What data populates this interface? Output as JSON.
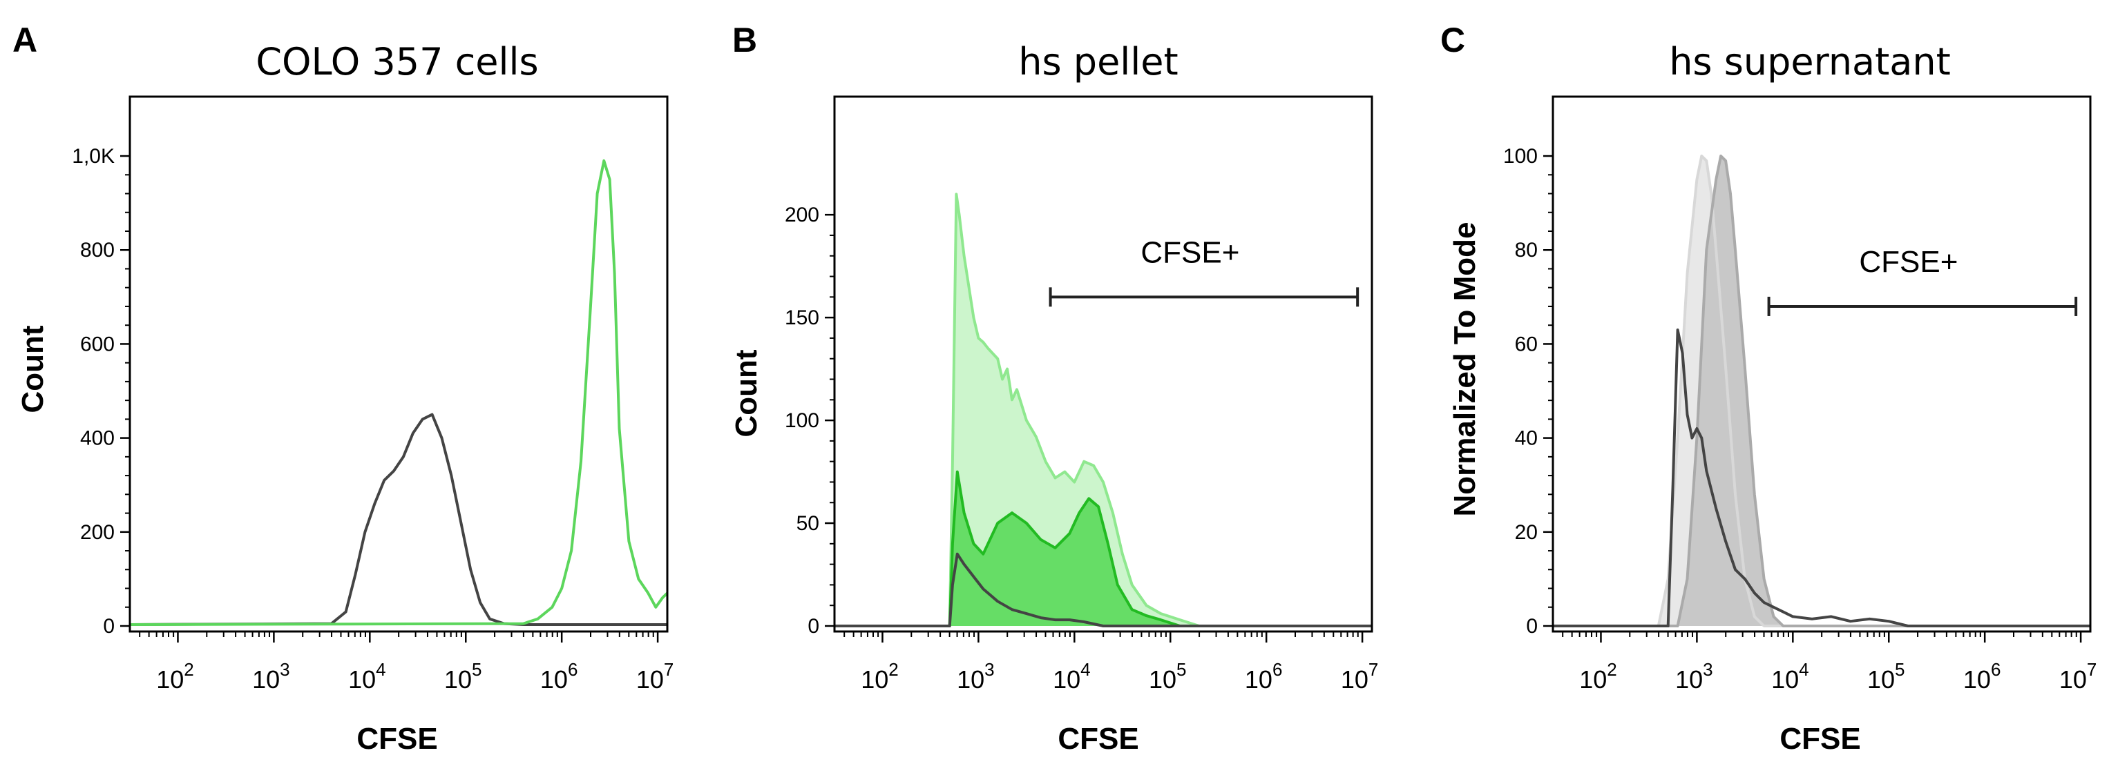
{
  "chart_data": [
    {
      "panel": "A",
      "type": "area",
      "title": "COLO 357 cells",
      "xlabel": "CFSE",
      "ylabel": "Count",
      "x_scale": "log",
      "x_ticks": [
        {
          "base": "10",
          "exp": "2"
        },
        {
          "base": "10",
          "exp": "3"
        },
        {
          "base": "10",
          "exp": "4"
        },
        {
          "base": "10",
          "exp": "5"
        },
        {
          "base": "10",
          "exp": "6"
        },
        {
          "base": "10",
          "exp": "7"
        }
      ],
      "y_ticks": [
        "0",
        "200",
        "400",
        "600",
        "800",
        "1,0K"
      ],
      "y_tick_values": [
        0,
        200,
        400,
        600,
        800,
        1000
      ],
      "xlim": [
        1.5,
        7.1
      ],
      "ylim": [
        0,
        1050
      ],
      "grid": false,
      "series": [
        {
          "color": "#444444",
          "fill": "none",
          "x": [
            1.5,
            3.6,
            3.75,
            3.85,
            3.95,
            4.05,
            4.15,
            4.25,
            4.35,
            4.45,
            4.55,
            4.65,
            4.75,
            4.85,
            4.95,
            5.05,
            5.15,
            5.25,
            5.4,
            5.6,
            7.1
          ],
          "y": [
            3,
            5,
            30,
            110,
            200,
            260,
            310,
            330,
            360,
            410,
            440,
            450,
            400,
            320,
            220,
            120,
            50,
            15,
            5,
            3,
            3
          ]
        },
        {
          "color": "#5cd65c",
          "fill": "none",
          "x": [
            1.5,
            5.6,
            5.75,
            5.9,
            6.0,
            6.1,
            6.2,
            6.3,
            6.37,
            6.44,
            6.5,
            6.55,
            6.6,
            6.7,
            6.8,
            6.9,
            6.98,
            7.05,
            7.1
          ],
          "y": [
            3,
            5,
            15,
            40,
            80,
            160,
            350,
            680,
            920,
            990,
            950,
            750,
            420,
            180,
            100,
            70,
            40,
            60,
            70
          ]
        }
      ]
    },
    {
      "panel": "B",
      "type": "area",
      "title": "hs pellet",
      "xlabel": "CFSE",
      "ylabel": "Count",
      "x_scale": "log",
      "x_ticks": [
        {
          "base": "10",
          "exp": "2"
        },
        {
          "base": "10",
          "exp": "3"
        },
        {
          "base": "10",
          "exp": "4"
        },
        {
          "base": "10",
          "exp": "5"
        },
        {
          "base": "10",
          "exp": "6"
        },
        {
          "base": "10",
          "exp": "7"
        }
      ],
      "y_ticks": [
        "0",
        "50",
        "100",
        "150",
        "200"
      ],
      "y_tick_values": [
        0,
        50,
        100,
        150,
        200
      ],
      "xlim": [
        1.5,
        7.1
      ],
      "ylim": [
        0,
        240
      ],
      "grid": false,
      "gate": {
        "label": "CFSE+",
        "from": 3.75,
        "to": 6.95,
        "y": 160
      },
      "series": [
        {
          "color": "#8fe88f",
          "fill": "#ccf5cc",
          "x": [
            1.5,
            2.7,
            2.73,
            2.77,
            2.8,
            2.85,
            2.9,
            2.95,
            3.0,
            3.05,
            3.1,
            3.2,
            3.25,
            3.3,
            3.35,
            3.4,
            3.5,
            3.6,
            3.7,
            3.8,
            3.9,
            4.0,
            4.1,
            4.2,
            4.3,
            4.4,
            4.5,
            4.6,
            4.75,
            4.9,
            5.1,
            5.3,
            7.1
          ],
          "y": [
            0,
            0,
            80,
            210,
            200,
            180,
            165,
            150,
            140,
            138,
            135,
            130,
            120,
            125,
            110,
            115,
            100,
            92,
            80,
            72,
            75,
            70,
            80,
            78,
            70,
            55,
            35,
            20,
            10,
            6,
            3,
            0,
            0
          ]
        },
        {
          "color": "#22bb22",
          "fill": "#66dd66",
          "x": [
            1.5,
            2.7,
            2.73,
            2.78,
            2.85,
            2.95,
            3.05,
            3.2,
            3.35,
            3.5,
            3.65,
            3.8,
            3.95,
            4.05,
            4.15,
            4.25,
            4.35,
            4.45,
            4.6,
            4.75,
            4.9,
            5.1,
            7.1
          ],
          "y": [
            0,
            0,
            40,
            75,
            55,
            40,
            35,
            50,
            55,
            50,
            42,
            38,
            45,
            55,
            62,
            58,
            40,
            20,
            8,
            5,
            3,
            0,
            0
          ]
        },
        {
          "color": "#444444",
          "fill": "none",
          "x": [
            1.5,
            2.7,
            2.73,
            2.78,
            2.85,
            2.95,
            3.05,
            3.2,
            3.35,
            3.5,
            3.65,
            3.8,
            3.95,
            4.1,
            4.3,
            7.1
          ],
          "y": [
            0,
            0,
            20,
            35,
            30,
            24,
            18,
            12,
            8,
            6,
            4,
            3,
            3,
            2,
            0,
            0
          ]
        }
      ]
    },
    {
      "panel": "C",
      "type": "area",
      "title": "hs supernatant",
      "xlabel": "CFSE",
      "ylabel": "Normalized To Mode",
      "x_scale": "log",
      "x_ticks": [
        {
          "base": "10",
          "exp": "2"
        },
        {
          "base": "10",
          "exp": "3"
        },
        {
          "base": "10",
          "exp": "4"
        },
        {
          "base": "10",
          "exp": "5"
        },
        {
          "base": "10",
          "exp": "6"
        },
        {
          "base": "10",
          "exp": "7"
        }
      ],
      "y_ticks": [
        "0",
        "20",
        "40",
        "60",
        "80",
        "100"
      ],
      "y_tick_values": [
        0,
        20,
        40,
        60,
        80,
        100
      ],
      "xlim": [
        1.5,
        7.1
      ],
      "ylim": [
        0,
        105
      ],
      "grid": false,
      "gate": {
        "label": "CFSE+",
        "from": 3.75,
        "to": 6.95,
        "y": 68
      },
      "series": [
        {
          "color": "#d8d8d8",
          "fill": "#e8e8e8",
          "x": [
            1.5,
            2.6,
            2.7,
            2.8,
            2.9,
            3.0,
            3.05,
            3.1,
            3.15,
            3.2,
            3.3,
            3.4,
            3.5,
            3.6,
            3.7,
            7.1
          ],
          "y": [
            0,
            0,
            10,
            40,
            75,
            95,
            100,
            99,
            92,
            80,
            55,
            28,
            10,
            2,
            0,
            0
          ]
        },
        {
          "color": "#aaaaaa",
          "fill": "#c8c8c8",
          "x": [
            1.5,
            2.8,
            2.9,
            3.0,
            3.1,
            3.2,
            3.25,
            3.3,
            3.35,
            3.4,
            3.5,
            3.6,
            3.7,
            3.8,
            3.9,
            7.1
          ],
          "y": [
            0,
            0,
            10,
            40,
            80,
            95,
            100,
            99,
            92,
            80,
            55,
            28,
            10,
            2,
            0,
            0
          ]
        },
        {
          "color": "#444444",
          "fill": "none",
          "x": [
            1.5,
            2.7,
            2.75,
            2.8,
            2.85,
            2.9,
            2.95,
            3.0,
            3.05,
            3.1,
            3.2,
            3.3,
            3.4,
            3.5,
            3.6,
            3.7,
            3.8,
            3.9,
            4.0,
            4.2,
            4.4,
            4.6,
            4.8,
            5.0,
            5.2,
            7.1
          ],
          "y": [
            0,
            0,
            30,
            63,
            58,
            45,
            40,
            42,
            40,
            33,
            25,
            18,
            12,
            10,
            7,
            5,
            4,
            3,
            2,
            1.5,
            2,
            1,
            1.5,
            1,
            0,
            0
          ]
        }
      ]
    }
  ]
}
